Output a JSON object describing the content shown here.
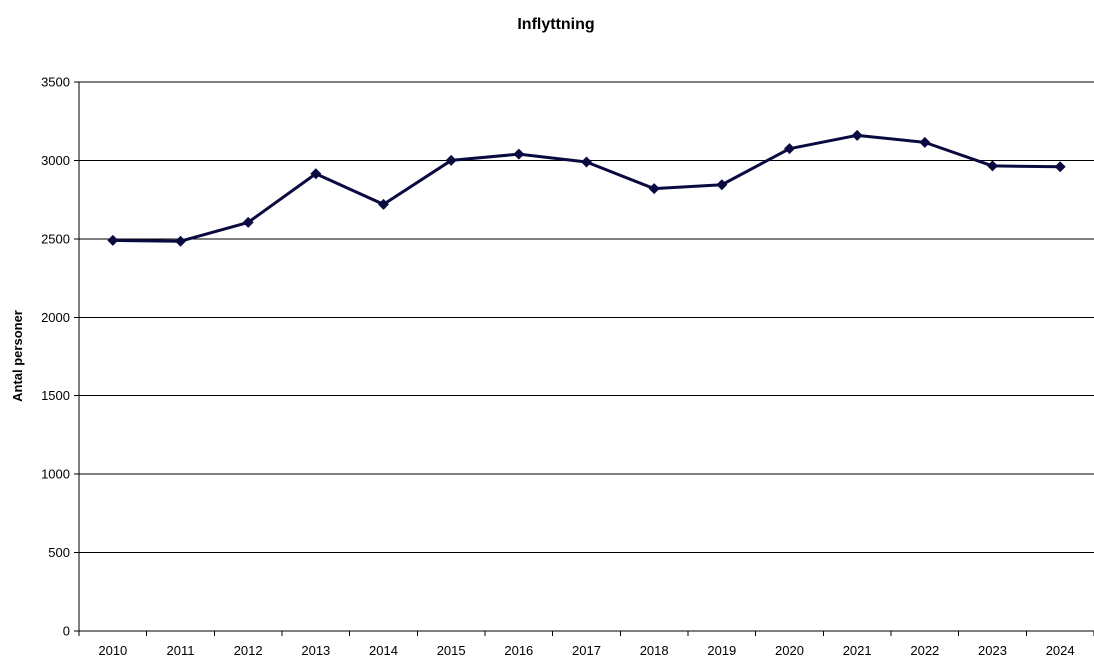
{
  "chart_data": {
    "type": "line",
    "title": "Inflyttning",
    "xlabel": "",
    "ylabel": "Antal personer",
    "ylim": [
      0,
      3500
    ],
    "yticks": [
      0,
      500,
      1000,
      1500,
      2000,
      2500,
      3000,
      3500
    ],
    "grid": true,
    "legend": "none",
    "categories": [
      "2010",
      "2011",
      "2012",
      "2013",
      "2014",
      "2015",
      "2016",
      "2017",
      "2018",
      "2019",
      "2020",
      "2021",
      "2022",
      "2023",
      "2024"
    ],
    "series": [
      {
        "values": [
          2490,
          2485,
          2605,
          2915,
          2720,
          3000,
          3040,
          2990,
          2820,
          2845,
          3075,
          3160,
          3115,
          2965,
          2960
        ],
        "color": "#0a0a40",
        "marker": "diamond"
      }
    ]
  }
}
